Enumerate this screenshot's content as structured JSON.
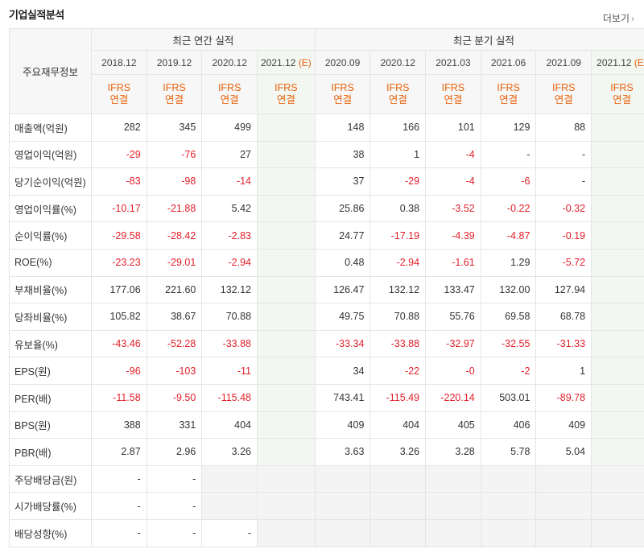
{
  "header": {
    "title": "기업실적분석",
    "more_label": "더보기",
    "more_icon": "chevron-right-icon"
  },
  "table": {
    "row_header_label": "주요재무정보",
    "annual_label": "최근 연간 실적",
    "quarter_label": "최근 분기 실적",
    "periods": [
      {
        "label": "2018.12",
        "est": ""
      },
      {
        "label": "2019.12",
        "est": ""
      },
      {
        "label": "2020.12",
        "est": ""
      },
      {
        "label": "2021.12",
        "est": "(E)"
      },
      {
        "label": "2020.09",
        "est": ""
      },
      {
        "label": "2020.12",
        "est": ""
      },
      {
        "label": "2021.03",
        "est": ""
      },
      {
        "label": "2021.06",
        "est": ""
      },
      {
        "label": "2021.09",
        "est": ""
      },
      {
        "label": "2021.12",
        "est": "(E)"
      }
    ],
    "ifrs_label": [
      "IFRS",
      "연결"
    ],
    "rows": [
      {
        "label": "매출액(억원)",
        "values": [
          "282",
          "345",
          "499",
          "",
          "148",
          "166",
          "101",
          "129",
          "88",
          ""
        ]
      },
      {
        "label": "영업이익(억원)",
        "values": [
          "-29",
          "-76",
          "27",
          "",
          "38",
          "1",
          "-4",
          "-",
          "-",
          ""
        ]
      },
      {
        "label": "당기순이익(억원)",
        "values": [
          "-83",
          "-98",
          "-14",
          "",
          "37",
          "-29",
          "-4",
          "-6",
          "-",
          ""
        ]
      },
      {
        "label": "영업이익률(%)",
        "values": [
          "-10.17",
          "-21.88",
          "5.42",
          "",
          "25.86",
          "0.38",
          "-3.52",
          "-0.22",
          "-0.32",
          ""
        ]
      },
      {
        "label": "순이익률(%)",
        "values": [
          "-29.58",
          "-28.42",
          "-2.83",
          "",
          "24.77",
          "-17.19",
          "-4.39",
          "-4.87",
          "-0.19",
          ""
        ]
      },
      {
        "label": "ROE(%)",
        "values": [
          "-23.23",
          "-29.01",
          "-2.94",
          "",
          "0.48",
          "-2.94",
          "-1.61",
          "1.29",
          "-5.72",
          ""
        ]
      },
      {
        "label": "부채비율(%)",
        "values": [
          "177.06",
          "221.60",
          "132.12",
          "",
          "126.47",
          "132.12",
          "133.47",
          "132.00",
          "127.94",
          ""
        ]
      },
      {
        "label": "당좌비율(%)",
        "values": [
          "105.82",
          "38.67",
          "70.88",
          "",
          "49.75",
          "70.88",
          "55.76",
          "69.58",
          "68.78",
          ""
        ]
      },
      {
        "label": "유보율(%)",
        "values": [
          "-43.46",
          "-52.28",
          "-33.88",
          "",
          "-33.34",
          "-33.88",
          "-32.97",
          "-32.55",
          "-31.33",
          ""
        ]
      },
      {
        "label": "EPS(원)",
        "values": [
          "-96",
          "-103",
          "-11",
          "",
          "34",
          "-22",
          "-0",
          "-2",
          "1",
          ""
        ]
      },
      {
        "label": "PER(배)",
        "values": [
          "-11.58",
          "-9.50",
          "-115.48",
          "",
          "743.41",
          "-115.49",
          "-220.14",
          "503.01",
          "-89.78",
          ""
        ]
      },
      {
        "label": "BPS(원)",
        "values": [
          "388",
          "331",
          "404",
          "",
          "409",
          "404",
          "405",
          "406",
          "409",
          ""
        ]
      },
      {
        "label": "PBR(배)",
        "values": [
          "2.87",
          "2.96",
          "3.26",
          "",
          "3.63",
          "3.26",
          "3.28",
          "5.78",
          "5.04",
          ""
        ]
      },
      {
        "label": "주당배당금(원)",
        "values": [
          "-",
          "-",
          "",
          "",
          "",
          "",
          "",
          "",
          "",
          ""
        ]
      },
      {
        "label": "시가배당률(%)",
        "values": [
          "-",
          "-",
          "",
          "",
          "",
          "",
          "",
          "",
          "",
          ""
        ]
      },
      {
        "label": "배당성향(%)",
        "values": [
          "-",
          "-",
          "-",
          "",
          "",
          "",
          "",
          "",
          "",
          ""
        ]
      }
    ],
    "colors": {
      "negative": "#e2202b",
      "ifrs": "#e9630e",
      "estimate_bg": "#f3f7f1"
    }
  }
}
